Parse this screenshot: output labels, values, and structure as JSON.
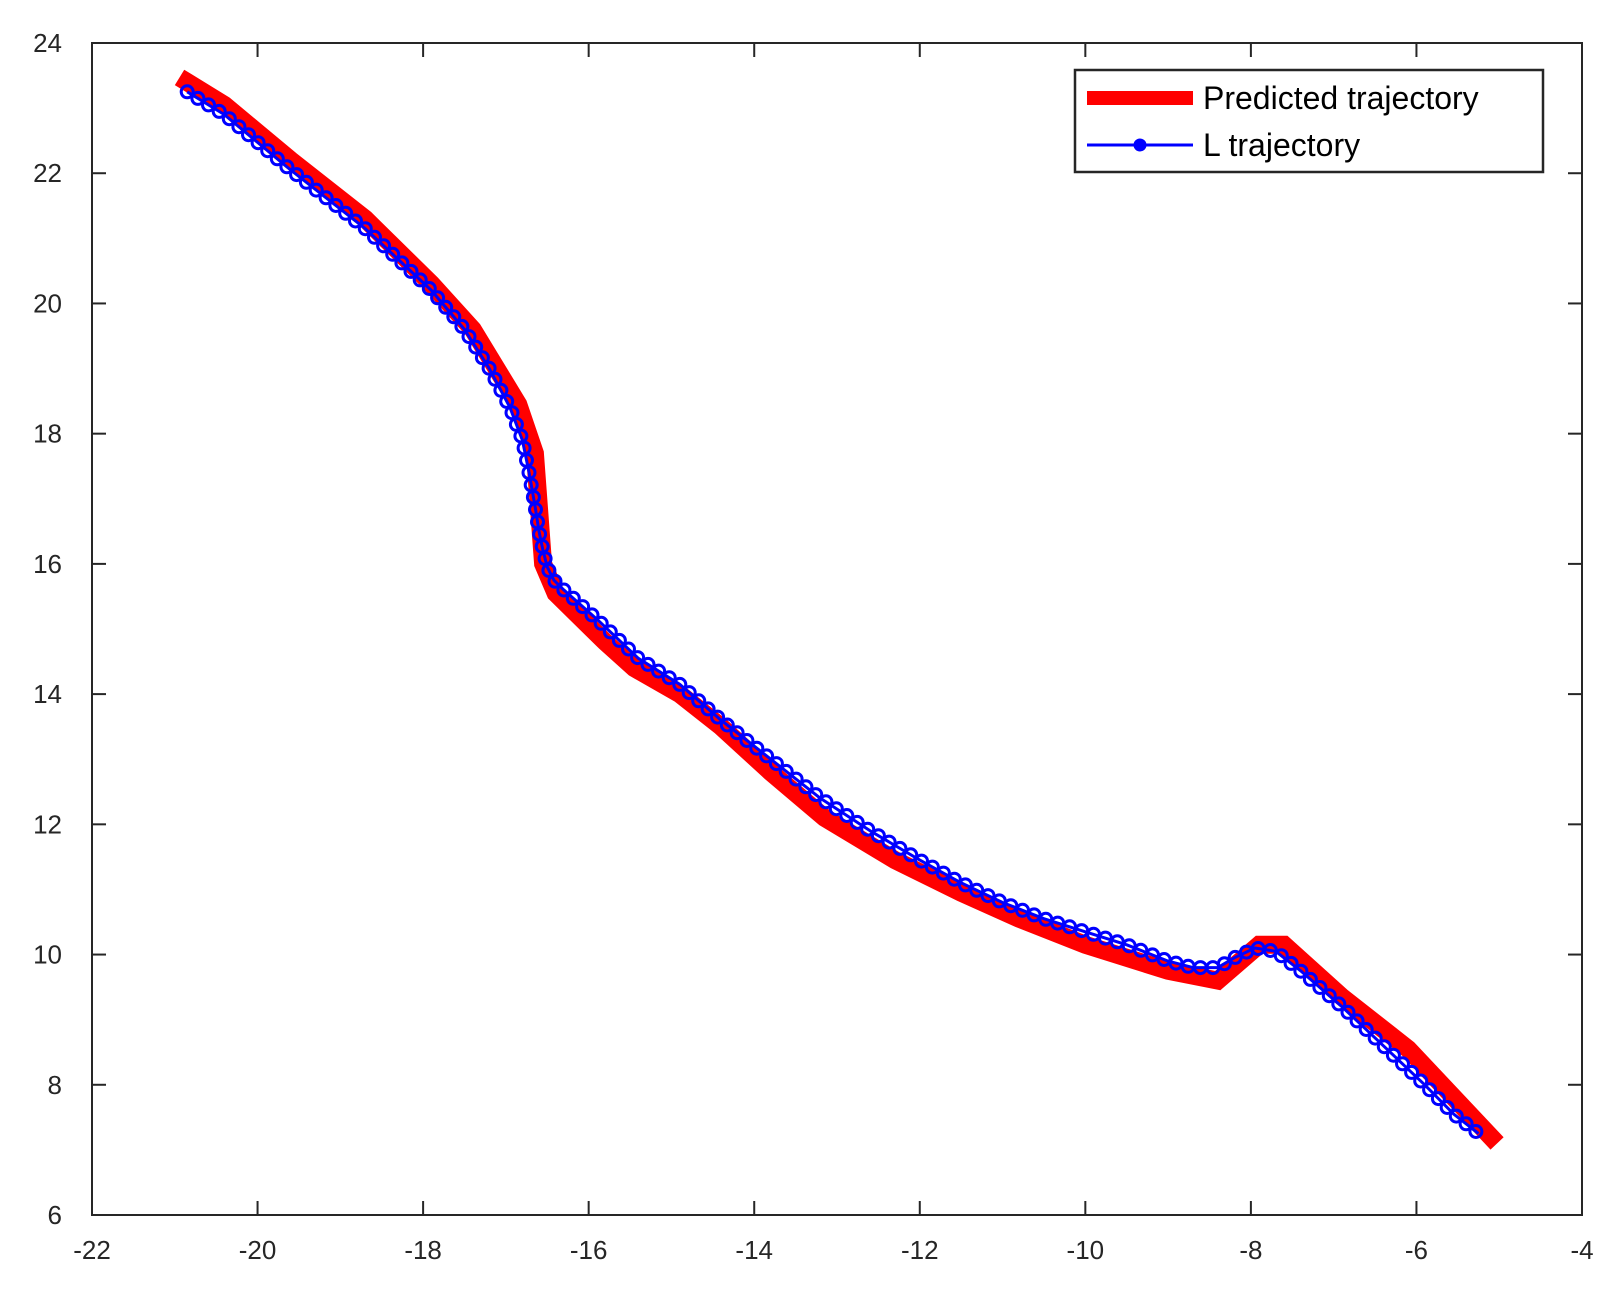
{
  "chart_data": {
    "type": "line",
    "title": "",
    "xlabel": "",
    "ylabel": "",
    "xlim": [
      -22,
      -4
    ],
    "ylim": [
      6,
      24
    ],
    "xticks": [
      -22,
      -20,
      -18,
      -16,
      -14,
      -12,
      -10,
      -8,
      -6,
      -4
    ],
    "yticks": [
      6,
      8,
      10,
      12,
      14,
      16,
      18,
      20,
      22,
      24
    ],
    "xtick_labels": [
      "-22",
      "-20",
      "-18",
      "-16",
      "-14",
      "-12",
      "-10",
      "-8",
      "-6",
      "-4"
    ],
    "ytick_labels": [
      "6",
      "8",
      "10",
      "12",
      "14",
      "16",
      "18",
      "20",
      "22",
      "24"
    ],
    "grid": false,
    "box": true,
    "legend": {
      "position": "top-right",
      "entries": [
        "Predicted trajectory",
        "L trajectory"
      ]
    },
    "series": [
      {
        "name": "Predicted trajectory",
        "color": "#ff0000",
        "style": "thick-line",
        "x": [
          -20.85,
          -20.4,
          -19.6,
          -18.7,
          -17.9,
          -17.4,
          -16.85,
          -16.65,
          -16.55,
          -16.4,
          -15.8,
          -15.45,
          -14.9,
          -14.4,
          -13.8,
          -13.15,
          -12.3,
          -11.5,
          -10.8,
          -10.0,
          -9.0,
          -8.4,
          -7.9,
          -7.6,
          -6.9,
          -6.1,
          -5.1
        ],
        "y": [
          23.4,
          23.05,
          22.2,
          21.3,
          20.3,
          19.6,
          18.45,
          17.7,
          16.0,
          15.55,
          14.8,
          14.4,
          14.0,
          13.5,
          12.8,
          12.1,
          11.45,
          10.95,
          10.55,
          10.15,
          9.75,
          9.6,
          10.15,
          10.15,
          9.35,
          8.55,
          7.2
        ]
      },
      {
        "name": "L trajectory",
        "color": "#0000ff",
        "style": "line-with-markers",
        "x": [
          -20.85,
          -20.4,
          -19.6,
          -18.7,
          -17.9,
          -17.5,
          -17.2,
          -16.95,
          -16.8,
          -16.72,
          -16.65,
          -16.6,
          -16.55,
          -16.5,
          -16.42,
          -16.3,
          -15.9,
          -15.4,
          -14.9,
          -14.4,
          -13.8,
          -13.2,
          -12.6,
          -12.0,
          -11.5,
          -11.0,
          -10.5,
          -10.0,
          -9.5,
          -9.0,
          -8.7,
          -8.4,
          -8.2,
          -7.95,
          -7.7,
          -7.4,
          -6.9,
          -6.4,
          -5.9,
          -5.55,
          -5.25
        ],
        "y": [
          23.25,
          22.9,
          22.05,
          21.15,
          20.2,
          19.6,
          19.0,
          18.4,
          17.9,
          17.4,
          16.9,
          16.5,
          16.2,
          15.95,
          15.75,
          15.6,
          15.15,
          14.55,
          14.15,
          13.6,
          13.0,
          12.4,
          11.9,
          11.45,
          11.1,
          10.8,
          10.55,
          10.35,
          10.15,
          9.9,
          9.8,
          9.8,
          9.95,
          10.1,
          10.05,
          9.75,
          9.2,
          8.6,
          8.0,
          7.55,
          7.25
        ]
      }
    ]
  }
}
